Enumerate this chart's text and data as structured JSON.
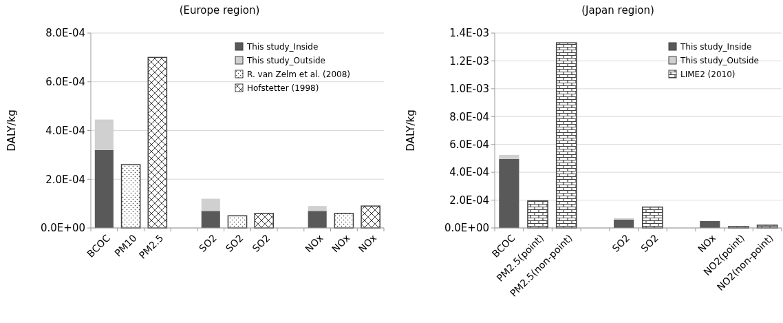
{
  "chart_data": [
    {
      "type": "bar",
      "title": "(Europe region)",
      "ylabel": "DALY/kg",
      "stacked": true,
      "grid": "y",
      "legend": "top right",
      "categories": [
        "BCOC",
        "PM10",
        "PM2.5",
        null,
        "SO2",
        "SO2",
        "SO2",
        null,
        "NOx",
        "NOx",
        "NOx"
      ],
      "ylim": [
        0,
        0.0008
      ],
      "yticks": [
        {
          "value": 0,
          "label": "0.0E+00"
        },
        {
          "value": 0.0002,
          "label": "2.0E-04"
        },
        {
          "value": 0.0004,
          "label": "4.0E-04"
        },
        {
          "value": 0.0006,
          "label": "6.0E-04"
        },
        {
          "value": 0.0008,
          "label": "8.0E-04"
        }
      ],
      "series": [
        {
          "name": "This study_Inside",
          "color": "#595959",
          "values": [
            0.00032,
            null,
            null,
            null,
            7e-05,
            null,
            null,
            null,
            7e-05,
            null,
            null
          ]
        },
        {
          "name": "This study_Outside",
          "color": "#d0d0d0",
          "values": [
            0.000125,
            null,
            null,
            null,
            5e-05,
            null,
            null,
            null,
            2e-05,
            null,
            null
          ]
        },
        {
          "name": "R. van Zelm et al. (2008)",
          "color": "#404040",
          "values": [
            null,
            0.00026,
            null,
            null,
            null,
            5e-05,
            null,
            null,
            null,
            6e-05,
            null
          ]
        },
        {
          "name": "Hofstetter (1998)",
          "color": "#404041",
          "values": [
            null,
            null,
            0.0007,
            null,
            null,
            null,
            6e-05,
            null,
            null,
            null,
            9e-05
          ]
        }
      ]
    },
    {
      "type": "bar",
      "title": "(Japan region)",
      "ylabel": "DALY/kg",
      "stacked": true,
      "grid": "y",
      "legend": "top right",
      "categories": [
        "BCOC",
        "PM2.5(point)",
        "PM2.5(non-point)",
        null,
        "SO2",
        "SO2",
        null,
        "NOx",
        "NO2(point)",
        "NO2(non-point)"
      ],
      "ylim": [
        0,
        0.0014
      ],
      "yticks": [
        {
          "value": 0,
          "label": "0.0E+00"
        },
        {
          "value": 0.0002,
          "label": "2.0E-04"
        },
        {
          "value": 0.0004,
          "label": "4.0E-04"
        },
        {
          "value": 0.0006,
          "label": "6.0E-04"
        },
        {
          "value": 0.0008,
          "label": "8.0E-04"
        },
        {
          "value": 0.001,
          "label": "1.0E-03"
        },
        {
          "value": 0.0012,
          "label": "1.2E-03"
        },
        {
          "value": 0.0014,
          "label": "1.4E-03"
        }
      ],
      "series": [
        {
          "name": "This study_Inside",
          "color": "#595959",
          "values": [
            0.000495,
            null,
            null,
            null,
            6e-05,
            null,
            null,
            5e-05,
            null,
            null
          ]
        },
        {
          "name": "This study_Outside",
          "color": "#d0d0d0",
          "values": [
            3e-05,
            null,
            null,
            null,
            1e-05,
            null,
            null,
            null,
            null,
            null
          ]
        },
        {
          "name": "LIME2 (2010)",
          "color": "#404042",
          "values": [
            null,
            0.000194,
            0.00133,
            null,
            null,
            0.00015,
            null,
            null,
            1e-05,
            2e-05
          ]
        }
      ]
    }
  ]
}
